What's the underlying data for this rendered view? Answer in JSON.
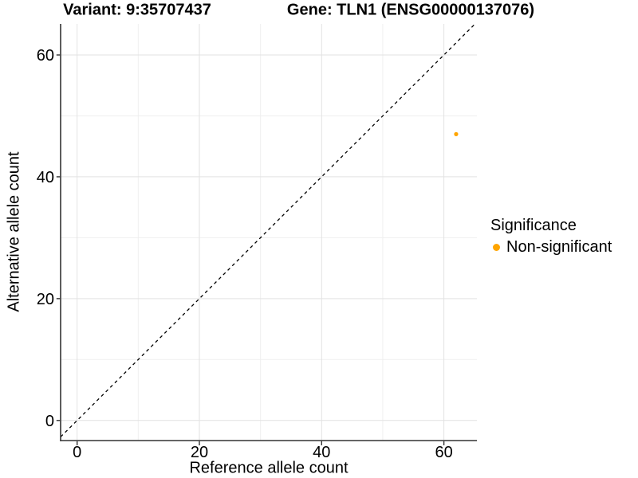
{
  "figure": {
    "title_left": "Variant: 9:35707437",
    "title_right": "Gene: TLN1 (ENSG00000137076)"
  },
  "chart_data": {
    "type": "scatter",
    "xlabel": "Reference allele count",
    "ylabel": "Alternative allele count",
    "xlim": [
      -2.7,
      65.4
    ],
    "ylim": [
      -3.3,
      65.1
    ],
    "xticks": [
      0,
      20,
      40,
      60
    ],
    "yticks": [
      0,
      20,
      40,
      60
    ],
    "xticks_minor": [
      10,
      30,
      50
    ],
    "yticks_minor": [
      10,
      30,
      50
    ],
    "grid": "major+minor",
    "series": [
      {
        "name": "Non-significant",
        "color": "#FFA500",
        "marker_radius": 2.6,
        "points": [
          {
            "x": 62,
            "y": 47
          }
        ]
      }
    ],
    "reference_line": {
      "type": "identity",
      "slope": 1,
      "intercept": 0,
      "style": "dashed",
      "color": "#000000"
    },
    "legend": {
      "title": "Significance",
      "position": "right",
      "entries": [
        {
          "label": "Non-significant",
          "color": "#FFA500"
        }
      ]
    },
    "colors": {
      "axis_line": "#333333",
      "tick_mark": "#333333",
      "grid_major": "#E2E2E2",
      "grid_minor": "#EFEFEF",
      "tick_text": "#000000"
    }
  }
}
